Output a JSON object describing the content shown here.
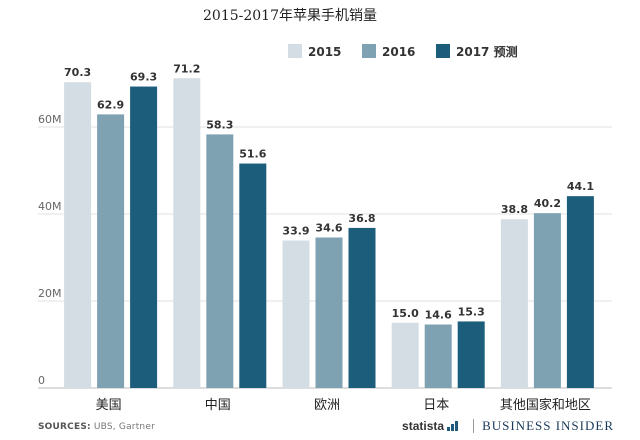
{
  "chart_data": {
    "type": "bar",
    "title": "2015-2017年苹果手机销量",
    "categories": [
      "美国",
      "中国",
      "欧洲",
      "日本",
      "其他国家和地区"
    ],
    "series": [
      {
        "name": "2015",
        "color": "#d3dde3",
        "values": [
          70.3,
          71.2,
          33.9,
          15.0,
          38.8
        ]
      },
      {
        "name": "2016",
        "color": "#7fa2b3",
        "values": [
          62.9,
          58.3,
          34.6,
          14.6,
          40.2
        ]
      },
      {
        "name": "2017 预测",
        "color": "#1d5d7c",
        "values": [
          69.3,
          51.6,
          36.8,
          15.3,
          44.1
        ]
      }
    ],
    "yticks": [
      0,
      20,
      40,
      60
    ],
    "yticklabels": [
      "0",
      "20M",
      "40M",
      "60M"
    ],
    "ylim": [
      0,
      80
    ],
    "grid": true,
    "legend": "top-right"
  },
  "footer": {
    "sources_label": "SOURCES:",
    "sources_text": "UBS, Gartner",
    "statista": "statista",
    "brand": "BUSINESS INSIDER"
  }
}
